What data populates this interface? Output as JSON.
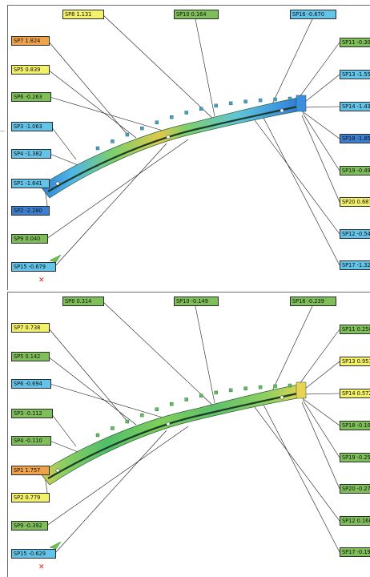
{
  "palette": {
    "green": "#7fbf5a",
    "yellow": "#f3f06a",
    "orange": "#f0a24a",
    "cyan": "#64c3e8",
    "blue": "#3c7fd0"
  },
  "panels": [
    {
      "name": "top",
      "labels": [
        {
          "id": "sp8",
          "text": "SP8 1.131",
          "color": "yellow"
        },
        {
          "id": "sp10",
          "text": "SP10 0.164",
          "color": "green"
        },
        {
          "id": "sp16",
          "text": "SP16 -0.670",
          "color": "cyan"
        },
        {
          "id": "sp7",
          "text": "SP7 1.824",
          "color": "orange"
        },
        {
          "id": "sp5",
          "text": "SP5 0.839",
          "color": "yellow"
        },
        {
          "id": "sp6",
          "text": "SP6 -0.263",
          "color": "green"
        },
        {
          "id": "sp3",
          "text": "SP3 -1.063",
          "color": "cyan"
        },
        {
          "id": "sp4",
          "text": "SP4 -1.382",
          "color": "cyan"
        },
        {
          "id": "sp1",
          "text": "SP1 -1.641",
          "color": "cyan"
        },
        {
          "id": "sp2",
          "text": "SP2 -2.280",
          "color": "blue"
        },
        {
          "id": "sp9",
          "text": "SP9 0.040",
          "color": "green"
        },
        {
          "id": "sp15",
          "text": "SP15 -0.679",
          "color": "cyan"
        },
        {
          "id": "sp11",
          "text": "SP11 -0.306",
          "color": "green"
        },
        {
          "id": "sp13",
          "text": "SP13 -1.551",
          "color": "cyan"
        },
        {
          "id": "sp14",
          "text": "SP14 -1.432",
          "color": "cyan"
        },
        {
          "id": "sp18",
          "text": "SP18 -1.852",
          "color": "blue"
        },
        {
          "id": "sp19",
          "text": "SP19 -0.496",
          "color": "green"
        },
        {
          "id": "sp20",
          "text": "SP20 0.687",
          "color": "yellow"
        },
        {
          "id": "sp12",
          "text": "SP12 -0.541",
          "color": "cyan"
        },
        {
          "id": "sp17",
          "text": "SP17 -1.323",
          "color": "cyan"
        }
      ]
    },
    {
      "name": "bottom",
      "labels": [
        {
          "id": "sp8",
          "text": "SP8 0.314",
          "color": "green"
        },
        {
          "id": "sp10",
          "text": "SP10 -0.149",
          "color": "green"
        },
        {
          "id": "sp16",
          "text": "SP16 -0.239",
          "color": "green"
        },
        {
          "id": "sp7",
          "text": "SP7 0.738",
          "color": "yellow"
        },
        {
          "id": "sp5",
          "text": "SP5 0.142",
          "color": "green"
        },
        {
          "id": "sp6",
          "text": "SP6 -0.694",
          "color": "cyan"
        },
        {
          "id": "sp3",
          "text": "SP3 -0.112",
          "color": "green"
        },
        {
          "id": "sp4",
          "text": "SP4 -0.110",
          "color": "green"
        },
        {
          "id": "sp1",
          "text": "SP1 1.757",
          "color": "orange"
        },
        {
          "id": "sp2",
          "text": "SP2 0.779",
          "color": "yellow"
        },
        {
          "id": "sp9",
          "text": "SP9 -0.392",
          "color": "green"
        },
        {
          "id": "sp15",
          "text": "SP15 -0.629",
          "color": "cyan"
        },
        {
          "id": "sp11",
          "text": "SP11 0.250",
          "color": "green"
        },
        {
          "id": "sp13",
          "text": "SP13 0.951",
          "color": "yellow"
        },
        {
          "id": "sp14",
          "text": "SP14 0.572",
          "color": "yellow"
        },
        {
          "id": "sp18",
          "text": "SP18 -0.108",
          "color": "green"
        },
        {
          "id": "sp19",
          "text": "SP19 -0.253",
          "color": "green"
        },
        {
          "id": "sp20",
          "text": "SP20 -0.271",
          "color": "green"
        },
        {
          "id": "sp12",
          "text": "SP12 0.168",
          "color": "green"
        },
        {
          "id": "sp17",
          "text": "SP17 -0.190",
          "color": "green"
        }
      ]
    }
  ]
}
